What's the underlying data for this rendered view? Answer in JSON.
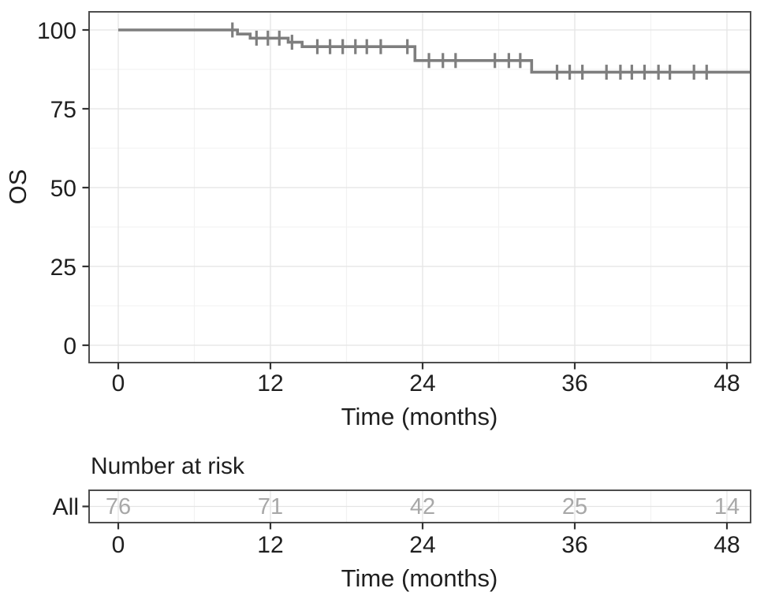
{
  "chart_data": {
    "type": "line",
    "chart_kind": "kaplan-meier-step",
    "title": "",
    "ylabel": "OS",
    "xlabel": "Time (months)",
    "x_ticks": [
      0,
      12,
      24,
      36,
      48
    ],
    "y_ticks": [
      100,
      75,
      50,
      25,
      0
    ],
    "xlim": [
      -2.3,
      49.9
    ],
    "ylim": [
      -5.5,
      105.7
    ],
    "legend": "none",
    "grid": "major and minor, light gray, white panel with dark border",
    "series": [
      {
        "name": "All",
        "steps": [
          [
            0,
            100
          ],
          [
            9.4,
            100
          ],
          [
            9.4,
            98.7
          ],
          [
            10.4,
            98.7
          ],
          [
            10.4,
            97.4
          ],
          [
            13.4,
            97.4
          ],
          [
            13.4,
            96.1
          ],
          [
            14.5,
            96.1
          ],
          [
            14.5,
            94.7
          ],
          [
            23.4,
            94.7
          ],
          [
            23.4,
            90.3
          ],
          [
            32.6,
            90.3
          ],
          [
            32.6,
            86.6
          ],
          [
            49.9,
            86.6
          ]
        ],
        "censor_marks": [
          [
            9.0,
            100
          ],
          [
            10.9,
            97.4
          ],
          [
            11.8,
            97.4
          ],
          [
            12.7,
            97.4
          ],
          [
            13.7,
            96.1
          ],
          [
            15.7,
            94.7
          ],
          [
            16.7,
            94.7
          ],
          [
            17.7,
            94.7
          ],
          [
            18.7,
            94.7
          ],
          [
            19.6,
            94.7
          ],
          [
            20.7,
            94.7
          ],
          [
            22.8,
            94.7
          ],
          [
            24.5,
            90.3
          ],
          [
            25.6,
            90.3
          ],
          [
            26.6,
            90.3
          ],
          [
            29.7,
            90.3
          ],
          [
            30.8,
            90.3
          ],
          [
            31.7,
            90.3
          ],
          [
            34.6,
            86.6
          ],
          [
            35.6,
            86.6
          ],
          [
            36.6,
            86.6
          ],
          [
            38.5,
            86.6
          ],
          [
            39.6,
            86.6
          ],
          [
            40.5,
            86.6
          ],
          [
            41.5,
            86.6
          ],
          [
            42.6,
            86.6
          ],
          [
            43.5,
            86.6
          ],
          [
            45.4,
            86.6
          ],
          [
            46.4,
            86.6
          ]
        ]
      }
    ],
    "risk_table": {
      "title": "Number at risk",
      "xlabel": "Time (months)",
      "times": [
        0,
        12,
        24,
        36,
        48
      ],
      "strata": [
        {
          "label": "All",
          "values": [
            76,
            71,
            42,
            25,
            14
          ]
        }
      ]
    },
    "colors": {
      "background": "#ffffff",
      "curve": "#7e7e7e",
      "censor": "#7e7e7e",
      "panel_border": "#4d4d4d",
      "grid_major": "#e4e4e4",
      "grid_minor": "#f2f2f2",
      "tick": "#333333",
      "text": "#1f1f1f",
      "risk_values": "#a8a8a8"
    }
  }
}
